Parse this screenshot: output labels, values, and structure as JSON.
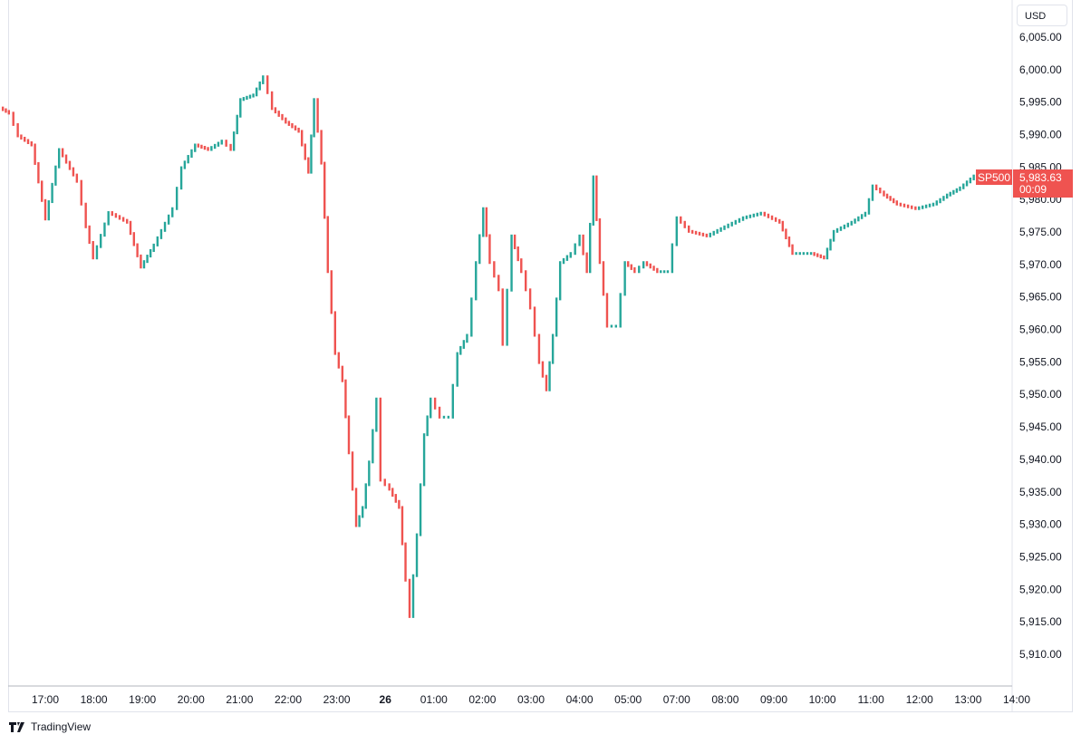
{
  "chart_data": {
    "type": "candlestick",
    "symbol": "SP500",
    "currency": "USD",
    "last_price": "5,983.63",
    "countdown": "00:09",
    "ylim": [
      5905,
      6008
    ],
    "y_ticks": [
      "6,005.00",
      "6,000.00",
      "5,995.00",
      "5,990.00",
      "5,985.00",
      "5,980.00",
      "5,975.00",
      "5,970.00",
      "5,965.00",
      "5,960.00",
      "5,955.00",
      "5,950.00",
      "5,945.00",
      "5,940.00",
      "5,935.00",
      "5,930.00",
      "5,925.00",
      "5,920.00",
      "5,915.00",
      "5,910.00"
    ],
    "x_ticks": [
      "17:00",
      "18:00",
      "19:00",
      "20:00",
      "21:00",
      "22:00",
      "23:00",
      "26",
      "01:00",
      "02:00",
      "03:00",
      "04:00",
      "05:00",
      "07:00",
      "08:00",
      "09:00",
      "10:00",
      "11:00",
      "12:00",
      "13:00",
      "14:00"
    ],
    "grid": false,
    "colors": {
      "up": "#26a69a",
      "down": "#ef5350"
    },
    "closes": [
      [
        "16:15",
        5993.3
      ],
      [
        "16:26",
        5989.8
      ],
      [
        "16:43",
        5988.4
      ],
      [
        "17:00",
        5977.0
      ],
      [
        "17:17",
        5987.7
      ],
      [
        "17:39",
        5982.8
      ],
      [
        "17:50",
        5975.8
      ],
      [
        "17:59",
        5971.0
      ],
      [
        "18:18",
        5978.0
      ],
      [
        "18:41",
        5976.5
      ],
      [
        "18:58",
        5969.6
      ],
      [
        "19:14",
        5973.0
      ],
      [
        "19:37",
        5978.6
      ],
      [
        "19:48",
        5984.9
      ],
      [
        "20:05",
        5988.4
      ],
      [
        "20:21",
        5987.7
      ],
      [
        "20:38",
        5989.0
      ],
      [
        "20:49",
        5987.7
      ],
      [
        "21:01",
        5995.4
      ],
      [
        "21:17",
        5996.1
      ],
      [
        "21:29",
        5998.9
      ],
      [
        "21:40",
        5994.0
      ],
      [
        "21:57",
        5991.9
      ],
      [
        "22:13",
        5990.5
      ],
      [
        "22:25",
        5984.2
      ],
      [
        "22:32",
        5995.4
      ],
      [
        "22:41",
        5985.6
      ],
      [
        "22:49",
        5968.9
      ],
      [
        "22:58",
        5956.3
      ],
      [
        "23:07",
        5952.1
      ],
      [
        "23:15",
        5941.0
      ],
      [
        "23:24",
        5929.8
      ],
      [
        "23:32",
        5932.6
      ],
      [
        "23:40",
        5939.6
      ],
      [
        "23:49",
        5949.3
      ],
      [
        "23:54",
        5936.8
      ],
      [
        "00:05",
        5935.4
      ],
      [
        "00:17",
        5932.6
      ],
      [
        "00:25",
        5921.4
      ],
      [
        "00:30",
        5915.8
      ],
      [
        "00:39",
        5928.4
      ],
      [
        "00:48",
        5943.8
      ],
      [
        "00:56",
        5949.3
      ],
      [
        "01:07",
        5946.5
      ],
      [
        "01:18",
        5946.5
      ],
      [
        "01:29",
        5956.3
      ],
      [
        "01:41",
        5959.1
      ],
      [
        "01:52",
        5970.3
      ],
      [
        "02:01",
        5978.6
      ],
      [
        "02:09",
        5970.3
      ],
      [
        "02:20",
        5966.1
      ],
      [
        "02:25",
        5957.7
      ],
      [
        "02:36",
        5974.4
      ],
      [
        "02:48",
        5968.9
      ],
      [
        "02:59",
        5963.3
      ],
      [
        "03:10",
        5954.9
      ],
      [
        "03:19",
        5950.7
      ],
      [
        "03:27",
        5959.1
      ],
      [
        "03:36",
        5970.3
      ],
      [
        "03:49",
        5971.7
      ],
      [
        "04:00",
        5974.4
      ],
      [
        "04:09",
        5968.9
      ],
      [
        "04:17",
        5983.5
      ],
      [
        "04:25",
        5970.3
      ],
      [
        "04:34",
        5960.5
      ],
      [
        "04:45",
        5960.5
      ],
      [
        "04:56",
        5970.3
      ],
      [
        "05:08",
        5968.9
      ],
      [
        "05:19",
        5970.3
      ],
      [
        "05:36",
        5968.9
      ],
      [
        "05:49",
        5968.9
      ],
      [
        "07:00",
        5977.2
      ],
      [
        "07:15",
        5975.1
      ],
      [
        "07:37",
        5974.4
      ],
      [
        "07:59",
        5975.8
      ],
      [
        "08:22",
        5977.2
      ],
      [
        "08:44",
        5977.9
      ],
      [
        "09:07",
        5976.5
      ],
      [
        "09:23",
        5971.7
      ],
      [
        "09:46",
        5971.7
      ],
      [
        "10:02",
        5971.0
      ],
      [
        "10:14",
        5975.1
      ],
      [
        "10:36",
        5976.5
      ],
      [
        "10:53",
        5977.9
      ],
      [
        "11:02",
        5982.1
      ],
      [
        "11:16",
        5980.7
      ],
      [
        "11:32",
        5979.3
      ],
      [
        "11:55",
        5978.6
      ],
      [
        "12:17",
        5979.3
      ],
      [
        "12:34",
        5980.7
      ],
      [
        "12:50",
        5981.8
      ],
      [
        "13:07",
        5983.63
      ]
    ]
  },
  "branding": {
    "logo_text": "TradingView"
  }
}
